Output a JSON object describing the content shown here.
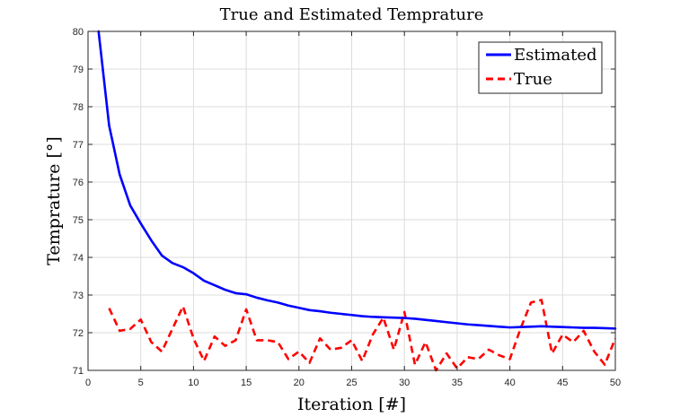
{
  "chart_data": {
    "type": "line",
    "title": "True and Estimated Temprature",
    "xlabel": "Iteration [#]",
    "ylabel": "Temprature [°]",
    "xlim": [
      0,
      50
    ],
    "ylim": [
      71,
      80
    ],
    "xticks": [
      0,
      5,
      10,
      15,
      20,
      25,
      30,
      35,
      40,
      45,
      50
    ],
    "yticks": [
      71,
      72,
      73,
      74,
      75,
      76,
      77,
      78,
      79,
      80
    ],
    "grid": true,
    "legend_position": "top-right",
    "series": [
      {
        "name": "Estimated",
        "color": "#0000ff",
        "style": "solid",
        "x": [
          1,
          2,
          3,
          4,
          5,
          6,
          7,
          8,
          9,
          10,
          11,
          12,
          13,
          14,
          15,
          16,
          17,
          18,
          19,
          20,
          21,
          22,
          23,
          24,
          25,
          26,
          27,
          28,
          29,
          30,
          31,
          32,
          33,
          34,
          35,
          36,
          37,
          38,
          39,
          40,
          41,
          42,
          43,
          44,
          45,
          46,
          47,
          48,
          49,
          50
        ],
        "values": [
          80.0,
          77.5,
          76.2,
          75.38,
          74.9,
          74.45,
          74.05,
          73.85,
          73.74,
          73.58,
          73.38,
          73.26,
          73.14,
          73.05,
          73.02,
          72.93,
          72.86,
          72.8,
          72.72,
          72.66,
          72.6,
          72.57,
          72.53,
          72.5,
          72.47,
          72.44,
          72.42,
          72.41,
          72.4,
          72.39,
          72.37,
          72.34,
          72.31,
          72.28,
          72.25,
          72.22,
          72.2,
          72.18,
          72.16,
          72.14,
          72.15,
          72.16,
          72.17,
          72.16,
          72.15,
          72.14,
          72.13,
          72.13,
          72.12,
          72.11
        ]
      },
      {
        "name": "True",
        "color": "#ff0000",
        "style": "dashed",
        "x": [
          2,
          3,
          4,
          5,
          6,
          7,
          8,
          9,
          10,
          11,
          12,
          13,
          14,
          15,
          16,
          17,
          18,
          19,
          20,
          21,
          22,
          23,
          24,
          25,
          26,
          27,
          28,
          29,
          30,
          31,
          32,
          33,
          34,
          35,
          36,
          37,
          38,
          39,
          40,
          41,
          42,
          43,
          44,
          45,
          46,
          47,
          48,
          49,
          50
        ],
        "values": [
          72.65,
          72.05,
          72.1,
          72.35,
          71.75,
          71.5,
          72.1,
          72.7,
          71.85,
          71.25,
          71.9,
          71.65,
          71.8,
          72.62,
          71.8,
          71.8,
          71.75,
          71.3,
          71.5,
          71.2,
          71.85,
          71.55,
          71.6,
          71.8,
          71.25,
          71.95,
          72.4,
          71.55,
          72.55,
          71.15,
          71.75,
          71.0,
          71.45,
          71.05,
          71.35,
          71.3,
          71.55,
          71.4,
          71.3,
          72.1,
          72.8,
          72.87,
          71.45,
          71.95,
          71.75,
          72.05,
          71.5,
          71.15,
          71.85
        ]
      }
    ]
  }
}
